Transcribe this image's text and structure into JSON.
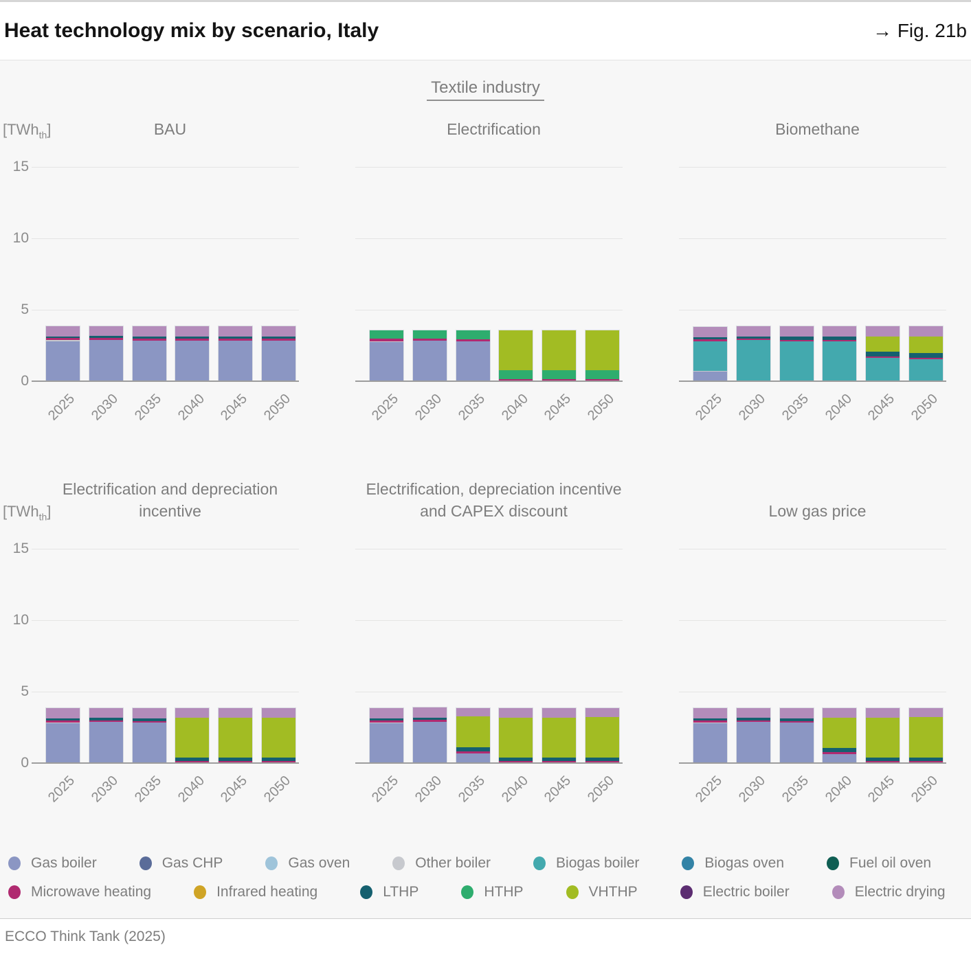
{
  "header": {
    "title": "Heat technology mix by scenario, Italy",
    "fig_label": "→ Fig. 21b"
  },
  "subtitle": "Textile industry",
  "footer": {
    "source": "ECCO Think Tank (2025)"
  },
  "axis": {
    "unit_prefix": "[TWh",
    "unit_sub": "th",
    "unit_suffix": "]",
    "yticks": [
      0,
      5,
      10,
      15
    ],
    "gridlines": [
      5,
      10,
      15
    ],
    "ylim": [
      0,
      16
    ]
  },
  "colors": {
    "Gas boiler": "#8b96c3",
    "Gas CHP": "#5a6c99",
    "Gas oven": "#9fc4da",
    "Other boiler": "#c7c9ce",
    "Biogas boiler": "#43a9ae",
    "Biogas oven": "#3383a6",
    "Fuel oil oven": "#0f5e53",
    "Microwave heating": "#b02a70",
    "Infrared heating": "#cfa426",
    "LTHP": "#15606f",
    "HTHP": "#2ead6e",
    "VHTHP": "#a2bc23",
    "Electric boiler": "#5c2d71",
    "Electric drying": "#b38cba"
  },
  "legend": {
    "rows": [
      [
        "Gas boiler",
        "Gas CHP",
        "Gas oven",
        "Other boiler",
        "Biogas boiler",
        "Biogas oven",
        "Fuel oil oven"
      ],
      [
        "Microwave heating",
        "Infrared heating",
        "LTHP",
        "HTHP",
        "VHTHP",
        "Electric boiler",
        "Electric drying"
      ]
    ]
  },
  "chart_data": {
    "type": "bar",
    "stacked": true,
    "unit": "TWh_th",
    "categories": [
      "2025",
      "2030",
      "2035",
      "2040",
      "2045",
      "2050"
    ],
    "ylim": [
      0,
      16
    ],
    "yticks": [
      0,
      5,
      10,
      15
    ],
    "legend_position": "bottom",
    "panels": [
      {
        "title": "BAU",
        "series": [
          {
            "name": "Gas boiler",
            "values": [
              2.75,
              2.85,
              2.8,
              2.8,
              2.8,
              2.78
            ]
          },
          {
            "name": "Other boiler",
            "values": [
              0.07,
              0,
              0,
              0,
              0,
              0
            ]
          },
          {
            "name": "Microwave heating",
            "values": [
              0.16,
              0.12,
              0.14,
              0.13,
              0.13,
              0.13
            ]
          },
          {
            "name": "LTHP",
            "values": [
              0.12,
              0.14,
              0.16,
              0.17,
              0.17,
              0.19
            ]
          },
          {
            "name": "Electric drying",
            "values": [
              0.7,
              0.69,
              0.7,
              0.7,
              0.7,
              0.7
            ]
          }
        ]
      },
      {
        "title": "Electrification",
        "series": [
          {
            "name": "Gas boiler",
            "values": [
              2.7,
              2.78,
              2.76,
              0,
              0,
              0
            ]
          },
          {
            "name": "Other boiler",
            "values": [
              0.06,
              0,
              0,
              0,
              0,
              0
            ]
          },
          {
            "name": "Microwave heating",
            "values": [
              0.16,
              0.13,
              0.13,
              0.11,
              0.11,
              0.1
            ]
          },
          {
            "name": "HTHP",
            "values": [
              0.58,
              0.59,
              0.61,
              0.62,
              0.62,
              0.62
            ]
          },
          {
            "name": "VHTHP",
            "values": [
              0,
              0,
              0,
              2.77,
              2.77,
              2.78
            ]
          }
        ]
      },
      {
        "title": "Biomethane",
        "series": [
          {
            "name": "Gas boiler",
            "values": [
              0.62,
              0,
              0,
              0,
              0,
              0
            ]
          },
          {
            "name": "Other boiler",
            "values": [
              0.06,
              0,
              0,
              0,
              0,
              0
            ]
          },
          {
            "name": "Biogas boiler",
            "values": [
              2.07,
              2.82,
              2.74,
              2.74,
              1.58,
              1.48
            ]
          },
          {
            "name": "Microwave heating",
            "values": [
              0.16,
              0.12,
              0.12,
              0.12,
              0.12,
              0.12
            ]
          },
          {
            "name": "LTHP",
            "values": [
              0.12,
              0.16,
              0.24,
              0.24,
              0.3,
              0.32
            ]
          },
          {
            "name": "VHTHP",
            "values": [
              0,
              0,
              0,
              0,
              1.1,
              1.18
            ]
          },
          {
            "name": "Electric drying",
            "values": [
              0.7,
              0.7,
              0.7,
              0.7,
              0.7,
              0.7
            ]
          }
        ]
      },
      {
        "title": "Electrification and depreciation incentive",
        "series": [
          {
            "name": "Gas boiler",
            "values": [
              2.73,
              2.82,
              2.78,
              0,
              0,
              0
            ]
          },
          {
            "name": "Other boiler",
            "values": [
              0.06,
              0,
              0,
              0,
              0,
              0
            ]
          },
          {
            "name": "Microwave heating",
            "values": [
              0.13,
              0.12,
              0.12,
              0.1,
              0.1,
              0.1
            ]
          },
          {
            "name": "LTHP",
            "values": [
              0.18,
              0.18,
              0.2,
              0.24,
              0.24,
              0.24
            ]
          },
          {
            "name": "VHTHP",
            "values": [
              0,
              0,
              0,
              2.78,
              2.78,
              2.8
            ]
          },
          {
            "name": "Electric drying",
            "values": [
              0.7,
              0.68,
              0.7,
              0.68,
              0.68,
              0.66
            ]
          }
        ]
      },
      {
        "title": "Electrification, depreciation incentive and CAPEX discount",
        "series": [
          {
            "name": "Gas boiler",
            "values": [
              2.73,
              2.85,
              0.62,
              0,
              0,
              0
            ]
          },
          {
            "name": "Other boiler",
            "values": [
              0.06,
              0,
              0,
              0,
              0,
              0
            ]
          },
          {
            "name": "Microwave heating",
            "values": [
              0.13,
              0.12,
              0.14,
              0.12,
              0.12,
              0.12
            ]
          },
          {
            "name": "LTHP",
            "values": [
              0.18,
              0.18,
              0.28,
              0.22,
              0.22,
              0.24
            ]
          },
          {
            "name": "VHTHP",
            "values": [
              0,
              0,
              2.16,
              2.8,
              2.8,
              2.8
            ]
          },
          {
            "name": "Electric drying",
            "values": [
              0.7,
              0.68,
              0.62,
              0.65,
              0.65,
              0.63
            ]
          }
        ]
      },
      {
        "title": "Low gas price",
        "series": [
          {
            "name": "Gas boiler",
            "values": [
              2.73,
              2.82,
              2.78,
              0.6,
              0,
              0
            ]
          },
          {
            "name": "Other boiler",
            "values": [
              0.06,
              0,
              0,
              0,
              0,
              0
            ]
          },
          {
            "name": "Microwave heating",
            "values": [
              0.13,
              0.12,
              0.12,
              0.13,
              0.12,
              0.12
            ]
          },
          {
            "name": "LTHP",
            "values": [
              0.18,
              0.18,
              0.2,
              0.3,
              0.22,
              0.24
            ]
          },
          {
            "name": "VHTHP",
            "values": [
              0,
              0,
              0,
              2.12,
              2.8,
              2.8
            ]
          },
          {
            "name": "Electric drying",
            "values": [
              0.7,
              0.7,
              0.7,
              0.65,
              0.65,
              0.63
            ]
          }
        ]
      }
    ]
  }
}
